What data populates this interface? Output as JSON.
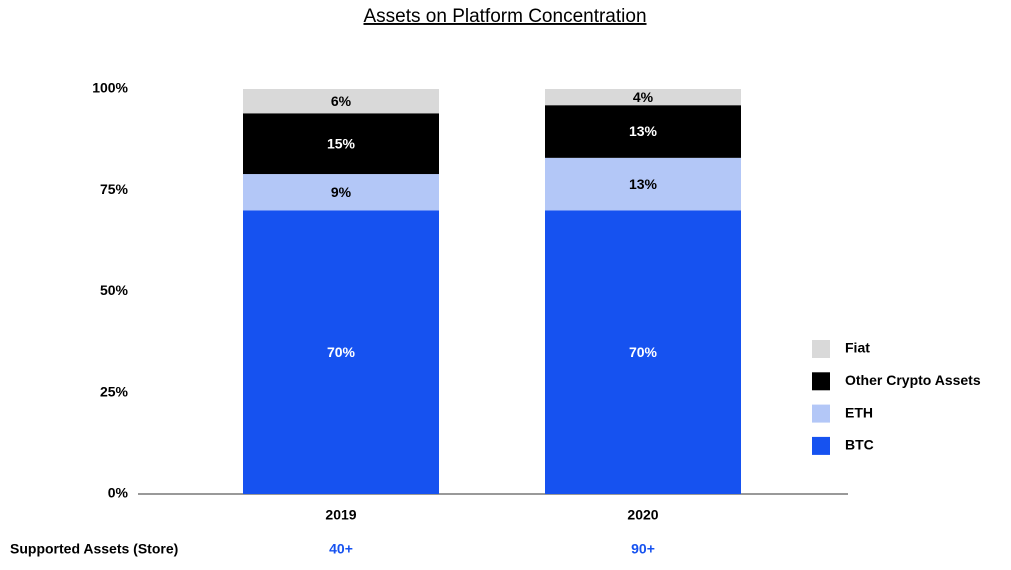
{
  "chart_data": {
    "type": "stacked_bar",
    "title": "Assets on Platform Concentration",
    "categories": [
      "2019",
      "2020"
    ],
    "series": [
      {
        "name": "BTC",
        "color": "#1652f0",
        "values": [
          70,
          70
        ],
        "value_labels": [
          "70%",
          "70%"
        ]
      },
      {
        "name": "ETH",
        "color": "#b3c7f7",
        "values": [
          9,
          13
        ],
        "value_labels": [
          "9%",
          "13%"
        ]
      },
      {
        "name": "Other Crypto Assets",
        "color": "#000000",
        "values": [
          15,
          13
        ],
        "value_labels": [
          "15%",
          "13%"
        ]
      },
      {
        "name": "Fiat",
        "color": "#d9d9d9",
        "values": [
          6,
          4
        ],
        "value_labels": [
          "6%",
          "4%"
        ]
      }
    ],
    "ylim": [
      0,
      100
    ],
    "yticks": [
      {
        "value": 0,
        "label": "0%"
      },
      {
        "value": 25,
        "label": "25%"
      },
      {
        "value": 50,
        "label": "50%"
      },
      {
        "value": 75,
        "label": "75%"
      },
      {
        "value": 100,
        "label": "100%"
      }
    ],
    "grid": false,
    "legend": "right",
    "footer_label": "Supported Assets (Store)",
    "footer_values": [
      "40+",
      "90+"
    ],
    "footer_color": "#1652f0"
  }
}
